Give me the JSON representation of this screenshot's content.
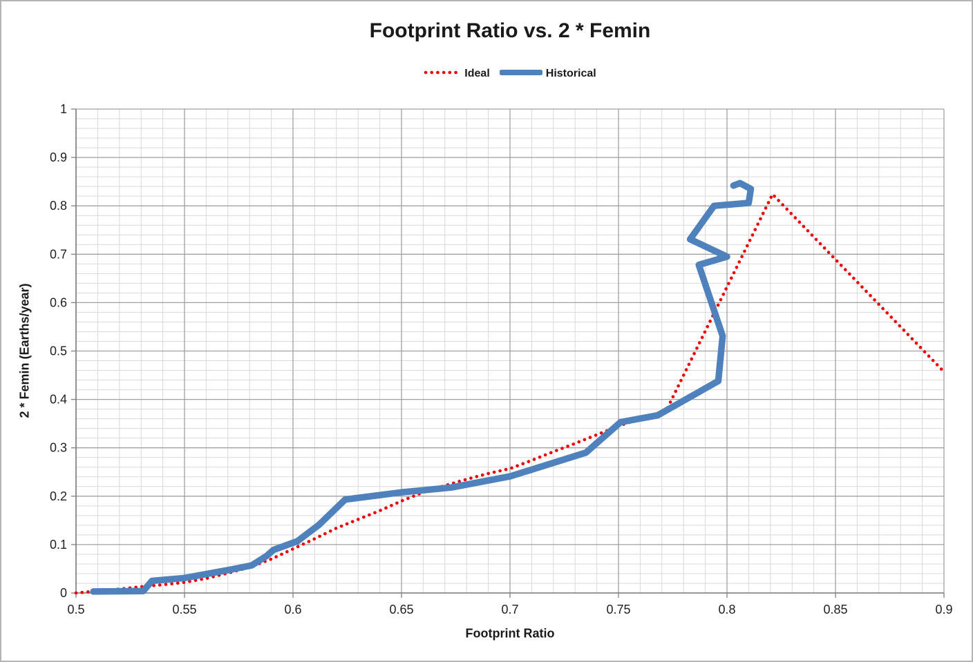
{
  "chart_data": {
    "type": "line",
    "title": "Footprint Ratio vs. 2 * Femin",
    "xlabel": "Footprint Ratio",
    "ylabel": "2 * Femin (Earths/year)",
    "xlim": [
      0.5,
      0.9
    ],
    "ylim": [
      0,
      1
    ],
    "x_major_step": 0.05,
    "x_minor_step": 0.01,
    "y_major_step": 0.1,
    "y_minor_step": 0.02,
    "grid": "major+minor",
    "legend_position": "top-center",
    "x_ticks": [
      "0.5",
      "0.55",
      "0.6",
      "0.65",
      "0.7",
      "0.75",
      "0.8",
      "0.85",
      "0.9"
    ],
    "y_ticks": [
      "0",
      "0.1",
      "0.2",
      "0.3",
      "0.4",
      "0.5",
      "0.6",
      "0.7",
      "0.8",
      "0.9",
      "1"
    ],
    "colors": {
      "grid_minor": "#d9d9d9",
      "grid_major": "#a0a0a0",
      "axis": "#7f7f7f",
      "text": "#1f1f1f"
    },
    "series": [
      {
        "name": "Ideal",
        "color": "#ee0000",
        "style": "dotted",
        "points": [
          [
            0.5,
            0.0
          ],
          [
            0.51,
            0.004
          ],
          [
            0.52,
            0.008
          ],
          [
            0.53,
            0.013
          ],
          [
            0.54,
            0.017
          ],
          [
            0.55,
            0.022
          ],
          [
            0.56,
            0.03
          ],
          [
            0.57,
            0.041
          ],
          [
            0.58,
            0.053
          ],
          [
            0.59,
            0.07
          ],
          [
            0.6,
            0.091
          ],
          [
            0.61,
            0.112
          ],
          [
            0.62,
            0.134
          ],
          [
            0.63,
            0.152
          ],
          [
            0.64,
            0.17
          ],
          [
            0.65,
            0.19
          ],
          [
            0.66,
            0.208
          ],
          [
            0.67,
            0.222
          ],
          [
            0.68,
            0.235
          ],
          [
            0.69,
            0.247
          ],
          [
            0.7,
            0.257
          ],
          [
            0.71,
            0.274
          ],
          [
            0.72,
            0.292
          ],
          [
            0.73,
            0.309
          ],
          [
            0.74,
            0.327
          ],
          [
            0.75,
            0.345
          ],
          [
            0.76,
            0.36
          ],
          [
            0.772,
            0.377
          ],
          [
            0.821,
            0.824
          ],
          [
            0.9,
            0.457
          ]
        ]
      },
      {
        "name": "Historical",
        "color": "#4f81bd",
        "style": "solid",
        "points": [
          [
            0.508,
            0.003
          ],
          [
            0.531,
            0.004
          ],
          [
            0.535,
            0.025
          ],
          [
            0.55,
            0.031
          ],
          [
            0.572,
            0.049
          ],
          [
            0.581,
            0.057
          ],
          [
            0.588,
            0.077
          ],
          [
            0.591,
            0.089
          ],
          [
            0.602,
            0.107
          ],
          [
            0.612,
            0.141
          ],
          [
            0.624,
            0.193
          ],
          [
            0.65,
            0.208
          ],
          [
            0.673,
            0.218
          ],
          [
            0.7,
            0.241
          ],
          [
            0.735,
            0.29
          ],
          [
            0.751,
            0.353
          ],
          [
            0.768,
            0.367
          ],
          [
            0.796,
            0.438
          ],
          [
            0.798,
            0.531
          ],
          [
            0.787,
            0.678
          ],
          [
            0.8,
            0.695
          ],
          [
            0.783,
            0.731
          ],
          [
            0.794,
            0.8
          ],
          [
            0.81,
            0.806
          ],
          [
            0.811,
            0.835
          ],
          [
            0.806,
            0.847
          ],
          [
            0.803,
            0.842
          ]
        ]
      }
    ]
  }
}
